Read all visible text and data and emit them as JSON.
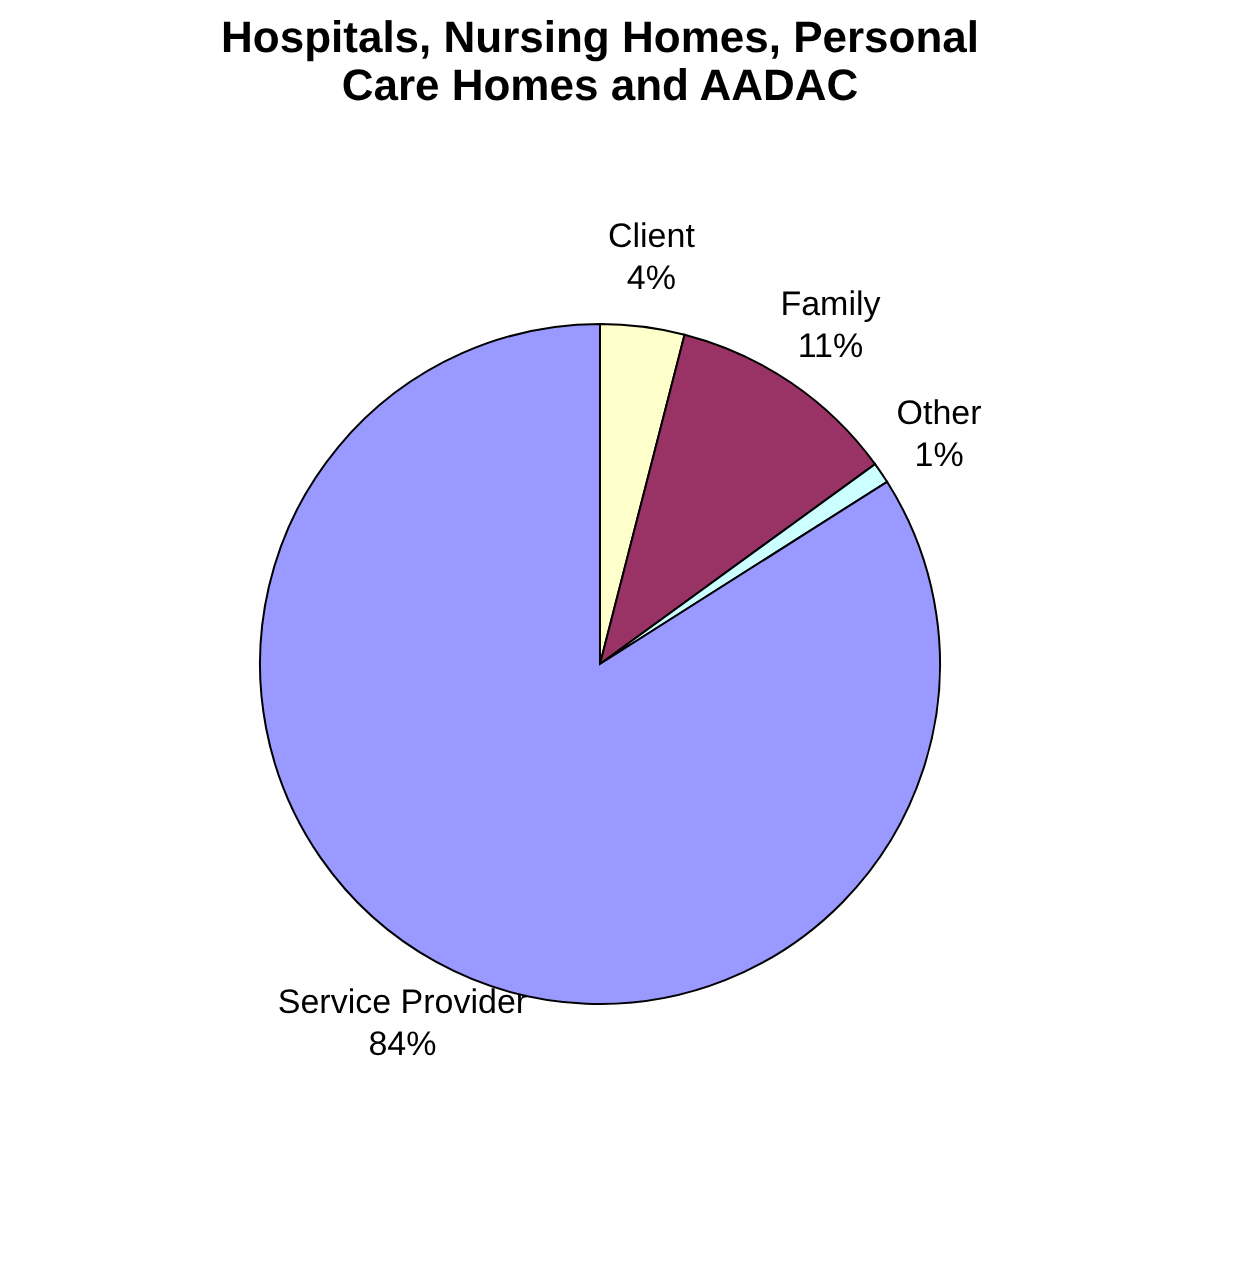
{
  "chart_data": {
    "type": "pie",
    "title": "Hospitals, Nursing Homes, Personal Care Homes and AADAC",
    "categories": [
      "Client",
      "Family",
      "Other",
      "Service Provider"
    ],
    "values": [
      4,
      11,
      1,
      84
    ],
    "colors": [
      "#ffffcc",
      "#993366",
      "#ccffff",
      "#9999ff"
    ],
    "value_labels": [
      "4%",
      "11%",
      "1%",
      "84%"
    ],
    "legend": false
  }
}
